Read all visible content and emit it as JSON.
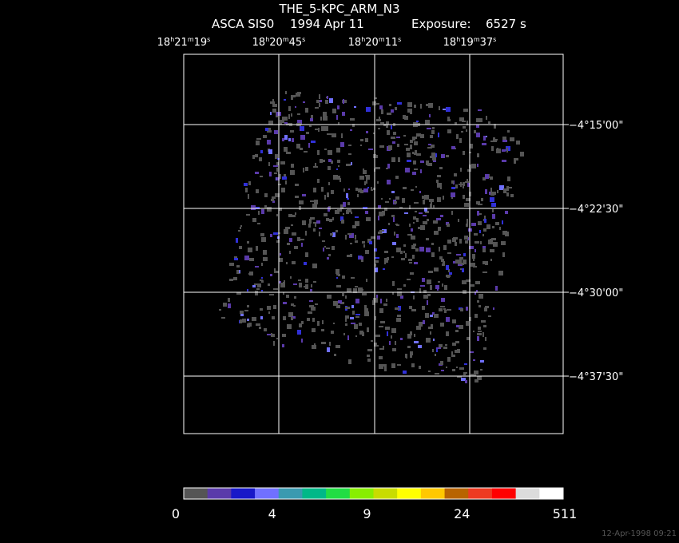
{
  "title": "THE_5-KPC_ARM_N3",
  "subtitle": {
    "instrument": "ASCA SIS0",
    "date": "1994 Apr 11",
    "exposure_label": "Exposure:",
    "exposure": "6527 s"
  },
  "ra_labels": [
    [
      "18",
      "h",
      "21",
      "m",
      "19",
      "s"
    ],
    [
      "18",
      "h",
      "20",
      "m",
      "45",
      "s"
    ],
    [
      "18",
      "h",
      "20",
      "m",
      "11",
      "s"
    ],
    [
      "18",
      "h",
      "19",
      "m",
      "37",
      "s"
    ]
  ],
  "dec_labels": [
    "−4°15'00\"",
    "−4°22'30\"",
    "−4°30'00\"",
    "−4°37'30\""
  ],
  "colorbar": {
    "colors": [
      "#555555",
      "#5a3aaa",
      "#1818c8",
      "#7070ff",
      "#3a9ab0",
      "#00b888",
      "#22dd44",
      "#88ee00",
      "#c8dc00",
      "#ffff00",
      "#ffc800",
      "#b86400",
      "#ee3a22",
      "#ff0000",
      "#dcdcdc",
      "#ffffff"
    ],
    "labels": [
      0,
      4,
      9,
      24,
      511
    ]
  },
  "timestamp": "12-Apr-1998 09:21"
}
